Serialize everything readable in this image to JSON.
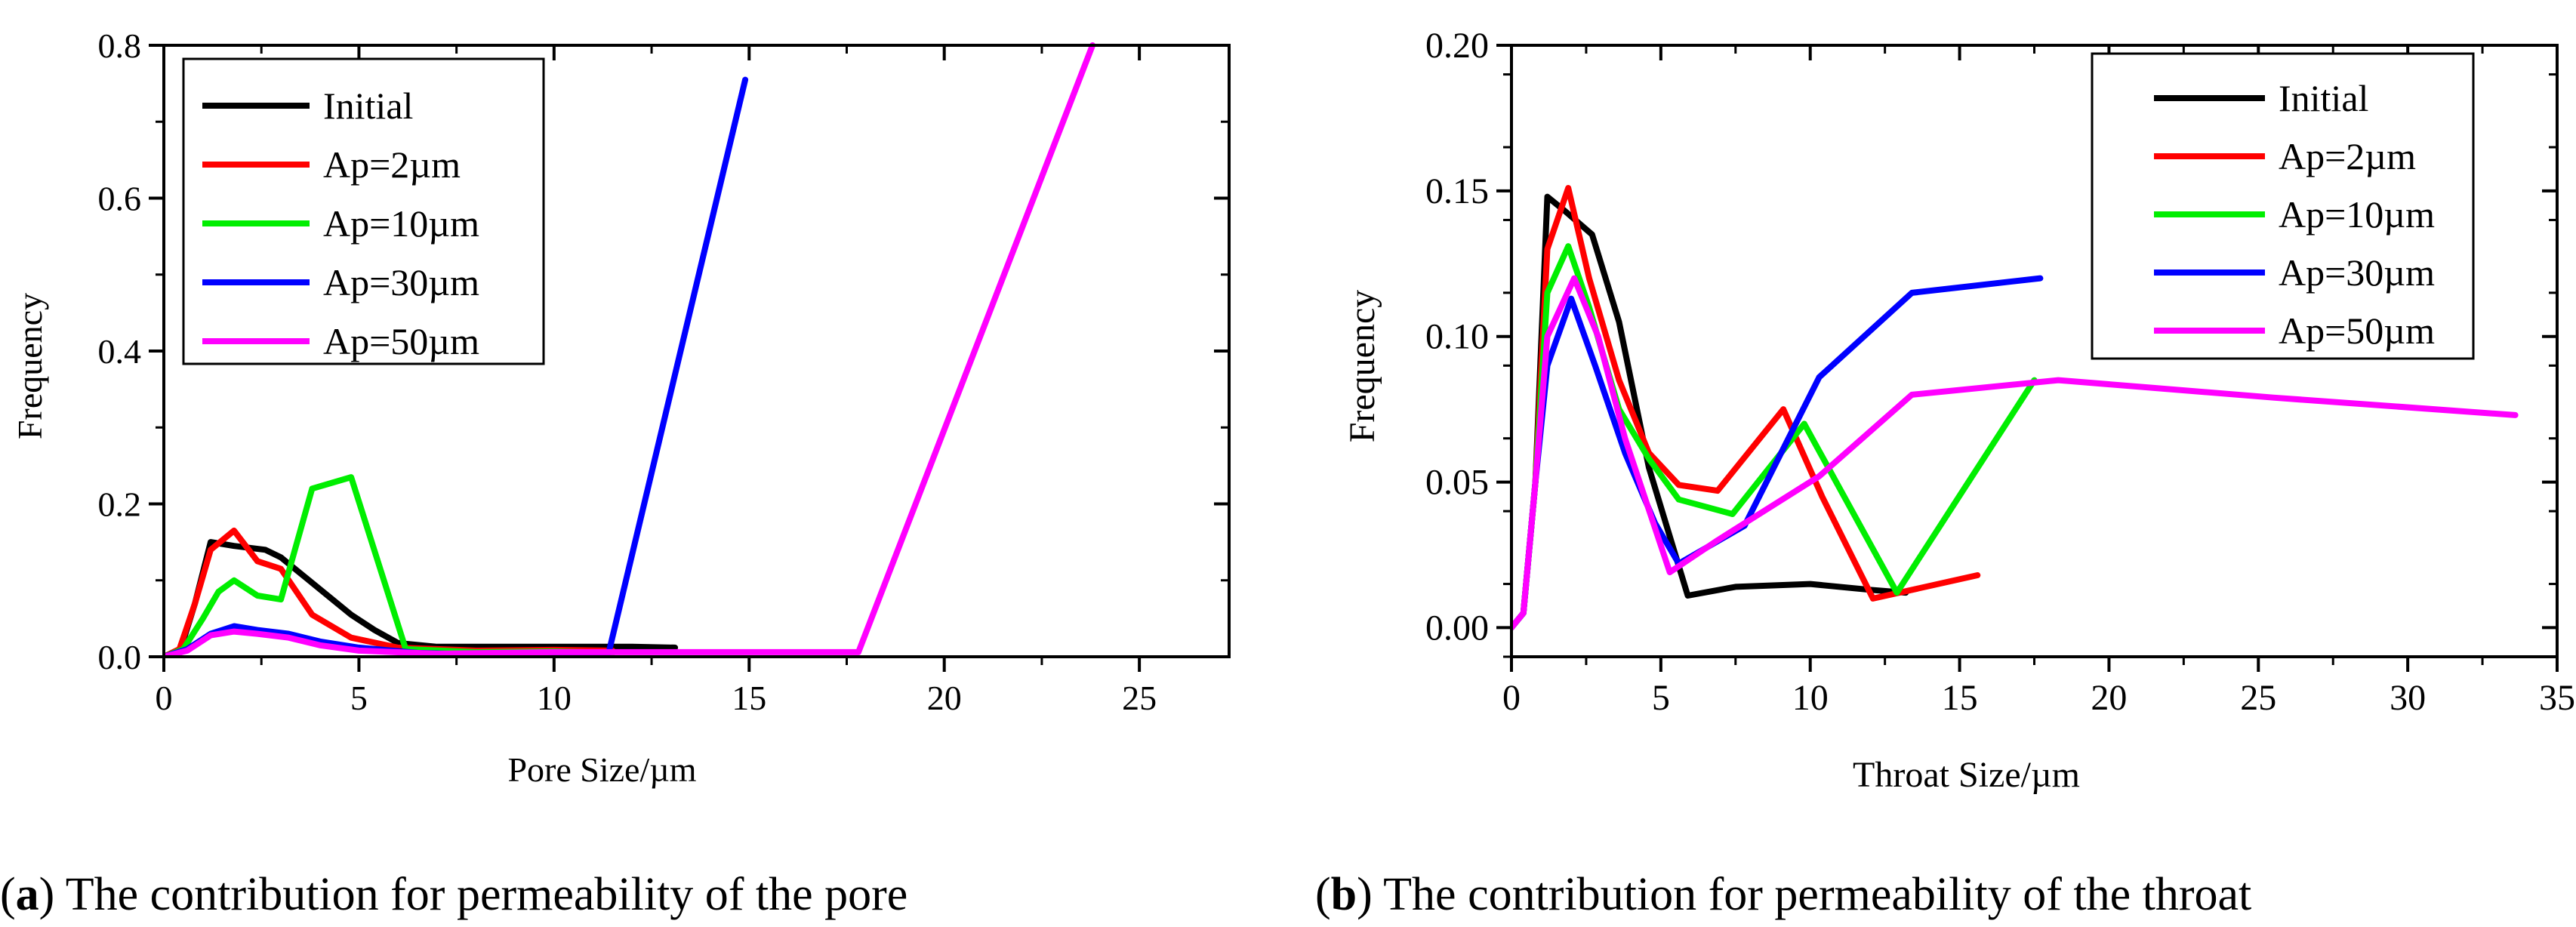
{
  "chart_data": [
    {
      "type": "line",
      "xlabel": "Pore Size/µm",
      "ylabel": "Frequency",
      "xlim": [
        0,
        27.3
      ],
      "ylim": [
        0,
        0.8
      ],
      "xticks": [
        0,
        5,
        10,
        15,
        20,
        25
      ],
      "xtick_labels": [
        "0",
        "5",
        "10",
        "15",
        "20",
        "25"
      ],
      "yticks": [
        0,
        0.2,
        0.4,
        0.6,
        0.8
      ],
      "ytick_labels": [
        "0.0",
        "0.2",
        "0.4",
        "0.6",
        "0.8"
      ],
      "legend_position": "top-left",
      "series": [
        {
          "name": "Initial",
          "color": "#000000",
          "points": [
            [
              0,
              0
            ],
            [
              0.4,
              0.005
            ],
            [
              0.8,
              0.07
            ],
            [
              1.2,
              0.15
            ],
            [
              1.8,
              0.145
            ],
            [
              2.6,
              0.14
            ],
            [
              3.0,
              0.13
            ],
            [
              3.6,
              0.105
            ],
            [
              4.2,
              0.08
            ],
            [
              4.8,
              0.055
            ],
            [
              5.4,
              0.035
            ],
            [
              6.0,
              0.018
            ],
            [
              7,
              0.013
            ],
            [
              8,
              0.013
            ],
            [
              9,
              0.013
            ],
            [
              10,
              0.013
            ],
            [
              11,
              0.013
            ],
            [
              12,
              0.013
            ],
            [
              13.1,
              0.012
            ]
          ]
        },
        {
          "name": "Ap=2µm",
          "color": "#ff0000",
          "points": [
            [
              0,
              0
            ],
            [
              0.4,
              0.01
            ],
            [
              0.8,
              0.07
            ],
            [
              1.2,
              0.14
            ],
            [
              1.8,
              0.165
            ],
            [
              2.4,
              0.125
            ],
            [
              3.0,
              0.115
            ],
            [
              3.8,
              0.055
            ],
            [
              4.8,
              0.025
            ],
            [
              6,
              0.012
            ],
            [
              8,
              0.008
            ],
            [
              10,
              0.009
            ],
            [
              11.5,
              0.008
            ]
          ]
        },
        {
          "name": "Ap=10µm",
          "color": "#00ee00",
          "points": [
            [
              0,
              0
            ],
            [
              0.5,
              0.01
            ],
            [
              1.0,
              0.05
            ],
            [
              1.4,
              0.085
            ],
            [
              1.8,
              0.1
            ],
            [
              2.4,
              0.08
            ],
            [
              3.0,
              0.075
            ],
            [
              3.8,
              0.22
            ],
            [
              4.8,
              0.235
            ],
            [
              6.2,
              0.01
            ],
            [
              8,
              0.006
            ],
            [
              10,
              0.007
            ],
            [
              11.5,
              0.005
            ]
          ]
        },
        {
          "name": "Ap=30µm",
          "color": "#0000ff",
          "points": [
            [
              0,
              0
            ],
            [
              0.6,
              0.01
            ],
            [
              1.2,
              0.03
            ],
            [
              1.8,
              0.04
            ],
            [
              2.4,
              0.035
            ],
            [
              3.2,
              0.03
            ],
            [
              4.0,
              0.02
            ],
            [
              5.0,
              0.012
            ],
            [
              6.5,
              0.005
            ],
            [
              8,
              0.003
            ],
            [
              10,
              0.004
            ],
            [
              11.4,
              0.005
            ],
            [
              14.9,
              0.755
            ]
          ]
        },
        {
          "name": "Ap=50µm",
          "color": "#ff00ff",
          "points": [
            [
              0,
              0
            ],
            [
              0.6,
              0.008
            ],
            [
              1.2,
              0.028
            ],
            [
              1.8,
              0.033
            ],
            [
              2.4,
              0.03
            ],
            [
              3.2,
              0.025
            ],
            [
              4.0,
              0.015
            ],
            [
              5.0,
              0.008
            ],
            [
              7,
              0.004
            ],
            [
              10,
              0.006
            ],
            [
              12,
              0.006
            ],
            [
              14,
              0.006
            ],
            [
              16,
              0.006
            ],
            [
              17.8,
              0.006
            ],
            [
              23.8,
              0.8
            ]
          ]
        }
      ]
    },
    {
      "type": "line",
      "xlabel": "Throat Size/µm",
      "ylabel": "Frequency",
      "xlim": [
        0,
        35
      ],
      "ylim": [
        -0.01,
        0.2
      ],
      "xticks": [
        0,
        5,
        10,
        15,
        20,
        25,
        30,
        35
      ],
      "xtick_labels": [
        "0",
        "5",
        "10",
        "15",
        "20",
        "25",
        "30",
        "35"
      ],
      "yticks": [
        0,
        0.05,
        0.1,
        0.15,
        0.2
      ],
      "ytick_labels": [
        "0.00",
        "0.05",
        "0.10",
        "0.15",
        "0.20"
      ],
      "legend_position": "top-right",
      "series": [
        {
          "name": "Initial",
          "color": "#000000",
          "points": [
            [
              0,
              0
            ],
            [
              0.4,
              0.005
            ],
            [
              0.8,
              0.05
            ],
            [
              1.2,
              0.148
            ],
            [
              1.8,
              0.143
            ],
            [
              2.7,
              0.135
            ],
            [
              3.6,
              0.105
            ],
            [
              4.6,
              0.055
            ],
            [
              5.9,
              0.011
            ],
            [
              7.5,
              0.014
            ],
            [
              10,
              0.015
            ],
            [
              12,
              0.013
            ],
            [
              13.2,
              0.012
            ]
          ]
        },
        {
          "name": "Ap=2µm",
          "color": "#ff0000",
          "points": [
            [
              0,
              0
            ],
            [
              0.4,
              0.005
            ],
            [
              0.8,
              0.05
            ],
            [
              1.2,
              0.13
            ],
            [
              1.9,
              0.151
            ],
            [
              2.6,
              0.12
            ],
            [
              3.6,
              0.085
            ],
            [
              4.6,
              0.06
            ],
            [
              5.6,
              0.049
            ],
            [
              6.9,
              0.047
            ],
            [
              9.1,
              0.075
            ],
            [
              10.4,
              0.045
            ],
            [
              12.1,
              0.01
            ],
            [
              15.6,
              0.018
            ]
          ]
        },
        {
          "name": "Ap=10µm",
          "color": "#00ee00",
          "points": [
            [
              0,
              0
            ],
            [
              0.4,
              0.005
            ],
            [
              0.8,
              0.05
            ],
            [
              1.2,
              0.115
            ],
            [
              1.9,
              0.131
            ],
            [
              2.6,
              0.11
            ],
            [
              3.6,
              0.075
            ],
            [
              4.6,
              0.058
            ],
            [
              5.6,
              0.044
            ],
            [
              7.4,
              0.039
            ],
            [
              9.8,
              0.07
            ],
            [
              12.9,
              0.012
            ],
            [
              17.5,
              0.085
            ]
          ]
        },
        {
          "name": "Ap=30µm",
          "color": "#0000ff",
          "points": [
            [
              0,
              0
            ],
            [
              0.4,
              0.005
            ],
            [
              0.8,
              0.05
            ],
            [
              1.2,
              0.09
            ],
            [
              2.0,
              0.113
            ],
            [
              2.8,
              0.09
            ],
            [
              3.8,
              0.06
            ],
            [
              4.8,
              0.036
            ],
            [
              5.6,
              0.022
            ],
            [
              7.8,
              0.035
            ],
            [
              10.3,
              0.086
            ],
            [
              13.4,
              0.115
            ],
            [
              17.7,
              0.12
            ]
          ]
        },
        {
          "name": "Ap=50µm",
          "color": "#ff00ff",
          "points": [
            [
              0,
              0
            ],
            [
              0.4,
              0.005
            ],
            [
              0.8,
              0.05
            ],
            [
              1.2,
              0.1
            ],
            [
              2.1,
              0.12
            ],
            [
              2.9,
              0.1
            ],
            [
              3.8,
              0.065
            ],
            [
              5.3,
              0.019
            ],
            [
              6.9,
              0.03
            ],
            [
              10.3,
              0.052
            ],
            [
              13.4,
              0.08
            ],
            [
              18.3,
              0.085
            ],
            [
              25.5,
              0.079
            ],
            [
              33.6,
              0.073
            ]
          ]
        }
      ]
    }
  ],
  "captions": [
    {
      "letter": "a",
      "text": " The contribution for permeability of the pore"
    },
    {
      "letter": "b",
      "text": " The contribution for permeability of the throat"
    }
  ]
}
